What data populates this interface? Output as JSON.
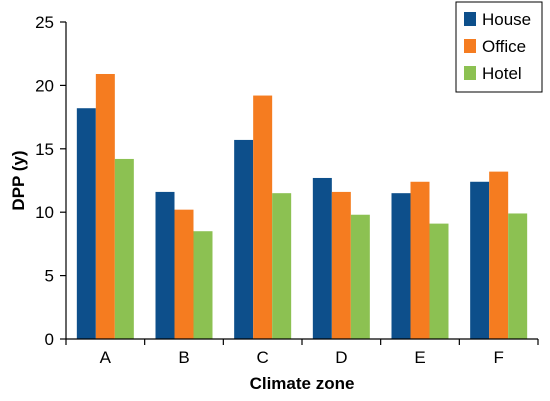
{
  "chart_data": {
    "type": "bar",
    "categories": [
      "A",
      "B",
      "C",
      "D",
      "E",
      "F"
    ],
    "series": [
      {
        "name": "House",
        "color": "#0d4f8b",
        "values": [
          18.2,
          11.6,
          15.7,
          12.7,
          11.5,
          12.4
        ]
      },
      {
        "name": "Office",
        "color": "#f57c20",
        "values": [
          20.9,
          10.2,
          19.2,
          11.6,
          12.4,
          13.2
        ]
      },
      {
        "name": "Hotel",
        "color": "#8cc152",
        "values": [
          14.2,
          8.5,
          11.5,
          9.8,
          9.1,
          9.9
        ]
      }
    ],
    "xlabel": "Climate zone",
    "ylabel": "DPP (y)",
    "ylim": [
      0,
      25
    ],
    "yticks": [
      0,
      5,
      10,
      15,
      20,
      25
    ],
    "grid": false,
    "legend_position": "top-right"
  }
}
